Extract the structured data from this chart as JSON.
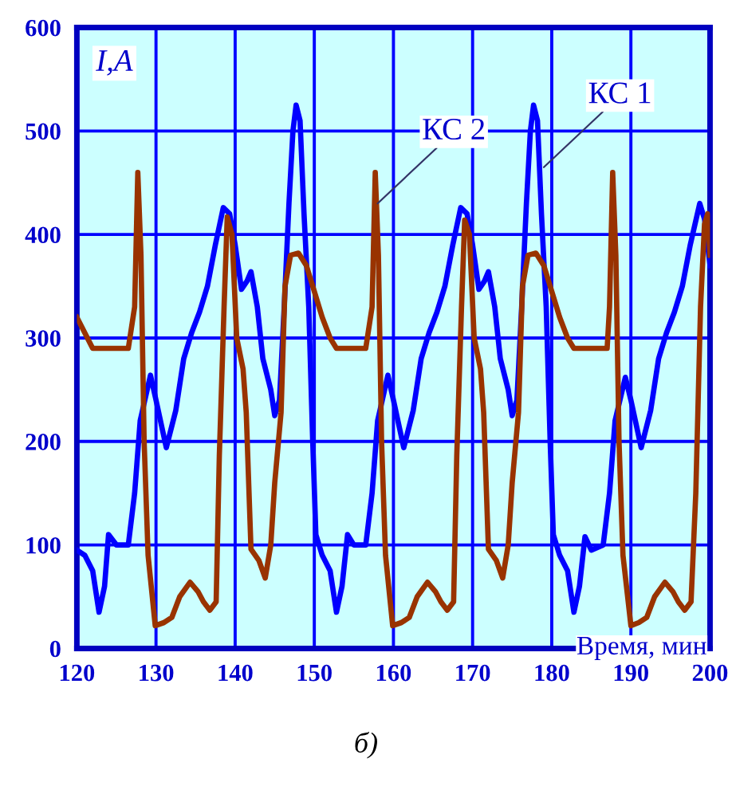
{
  "chart_data": {
    "type": "line",
    "xlabel": "Время, мин",
    "ylabel": "I,A",
    "xlim": [
      120,
      200
    ],
    "xticks": [
      120,
      130,
      140,
      150,
      160,
      170,
      180,
      190,
      200
    ],
    "ylim": [
      0,
      600
    ],
    "yticks": [
      0,
      100,
      200,
      300,
      400,
      500,
      600
    ],
    "grid": true,
    "legend": false,
    "marker": "none",
    "line_style": "solid",
    "series": [
      {
        "color": "#0000ff",
        "x": [
          120,
          121,
          122,
          122.8,
          123.5,
          124,
          125,
          126.5,
          127.3,
          128,
          129.3,
          130,
          131.3,
          132.5,
          133.5,
          134.5,
          135.5,
          136.5,
          137.5,
          138.5,
          139.3,
          140,
          140.8,
          141.5,
          142,
          142.8,
          143.5,
          144.5,
          145,
          145.6,
          146.2,
          146.8,
          147.3,
          147.7,
          148.2,
          148.7,
          149.3,
          149.8,
          150.2,
          151,
          152,
          152.8,
          153.5,
          154.2,
          155,
          156.5,
          157.3,
          158,
          159.3,
          160,
          161.3,
          162.5,
          163.5,
          164.5,
          165.5,
          166.5,
          167.5,
          168.5,
          169.3,
          170,
          170.8,
          171.5,
          172,
          172.8,
          173.5,
          174.5,
          175,
          175.6,
          176.2,
          176.8,
          177.3,
          177.7,
          178.2,
          178.7,
          179.3,
          179.8,
          180.2,
          181,
          182,
          182.8,
          183.5,
          184.2,
          185,
          186.5,
          187.3,
          188,
          189.3,
          190,
          191.3,
          192.5,
          193.5,
          194.5,
          195.5,
          196.5,
          197.5,
          198.7,
          199.3,
          200
        ],
        "values": [
          95,
          90,
          75,
          35,
          60,
          110,
          100,
          100,
          150,
          220,
          264,
          240,
          194,
          230,
          280,
          305,
          325,
          350,
          390,
          426,
          420,
          390,
          347,
          355,
          364,
          330,
          280,
          250,
          225,
          240,
          330,
          430,
          500,
          525,
          510,
          420,
          330,
          200,
          110,
          90,
          75,
          35,
          60,
          110,
          100,
          100,
          150,
          220,
          264,
          240,
          194,
          230,
          280,
          305,
          325,
          350,
          390,
          426,
          420,
          390,
          347,
          355,
          364,
          330,
          280,
          250,
          225,
          240,
          330,
          430,
          500,
          525,
          510,
          420,
          330,
          200,
          110,
          90,
          75,
          35,
          60,
          108,
          95,
          100,
          150,
          220,
          262,
          240,
          194,
          230,
          280,
          305,
          325,
          350,
          390,
          430,
          415,
          370
        ]
      },
      {
        "color": "#993300",
        "x": [
          120,
          121,
          122,
          124,
          126.5,
          127.3,
          127.7,
          128.1,
          128.5,
          129,
          129.9,
          131,
          132,
          133,
          134.3,
          135.3,
          136,
          136.8,
          137.6,
          138,
          138.6,
          139,
          139.6,
          140.2,
          141,
          141.4,
          142,
          143,
          143.8,
          144.5,
          145,
          145.8,
          146.3,
          147,
          148,
          149,
          150,
          151,
          152,
          152.8,
          156.5,
          157.3,
          157.7,
          158.1,
          158.5,
          159,
          159.9,
          161,
          162,
          163,
          164.3,
          165.3,
          166,
          166.8,
          167.6,
          168,
          168.6,
          169,
          169.6,
          170.2,
          171,
          171.4,
          172,
          173,
          173.8,
          174.5,
          175,
          175.8,
          176.3,
          177,
          178,
          179,
          180,
          181,
          182,
          182.8,
          187,
          187.3,
          187.7,
          188.1,
          188.5,
          189,
          190,
          191,
          192,
          193,
          194.3,
          195.3,
          196,
          196.8,
          197.6,
          198.2,
          198.8,
          199.3,
          199.7,
          200
        ],
        "values": [
          320,
          305,
          290,
          290,
          290,
          330,
          460,
          380,
          200,
          90,
          22,
          25,
          30,
          50,
          64,
          55,
          45,
          37,
          45,
          186,
          330,
          417,
          400,
          300,
          270,
          228,
          96,
          85,
          68,
          100,
          160,
          228,
          350,
          380,
          382,
          370,
          345,
          320,
          300,
          290,
          290,
          330,
          460,
          380,
          200,
          90,
          22,
          25,
          30,
          50,
          64,
          55,
          45,
          37,
          45,
          186,
          330,
          414,
          400,
          300,
          270,
          228,
          96,
          85,
          68,
          100,
          160,
          228,
          350,
          380,
          382,
          370,
          345,
          320,
          300,
          290,
          290,
          330,
          460,
          380,
          200,
          90,
          22,
          25,
          30,
          50,
          64,
          55,
          45,
          37,
          45,
          150,
          330,
          410,
          420,
          380
        ]
      }
    ],
    "annotations": [
      {
        "text": "КС 2",
        "x": 158,
        "y": 430
      },
      {
        "text": "КС 1",
        "x": 179,
        "y": 465
      },
      "б)"
    ]
  }
}
